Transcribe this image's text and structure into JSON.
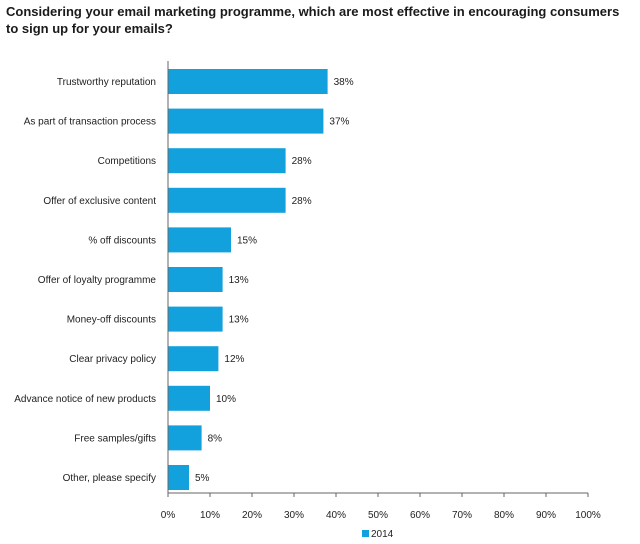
{
  "chart_data": {
    "type": "bar",
    "orientation": "horizontal",
    "title": "Considering your email marketing programme, which are most effective in encouraging consumers to sign up for your emails?",
    "categories": [
      "Trustworthy reputation",
      "As part of transaction process",
      "Competitions",
      "Offer of exclusive content",
      "% off discounts",
      "Offer of loyalty programme",
      "Money-off discounts",
      "Clear privacy policy",
      "Advance notice of new products",
      "Free samples/gifts",
      "Other, please specify"
    ],
    "series": [
      {
        "name": "2014",
        "values": [
          38,
          37,
          28,
          28,
          15,
          13,
          13,
          12,
          10,
          8,
          5
        ],
        "color": "#12a1dc"
      }
    ],
    "value_suffix": "%",
    "xlim": [
      0,
      100
    ],
    "xticks": [
      0,
      10,
      20,
      30,
      40,
      50,
      60,
      70,
      80,
      90,
      100
    ],
    "xtick_labels": [
      "0%",
      "10%",
      "20%",
      "30%",
      "40%",
      "50%",
      "60%",
      "70%",
      "80%",
      "90%",
      "100%"
    ],
    "data_labels": [
      "38%",
      "37%",
      "28%",
      "28%",
      "15%",
      "13%",
      "13%",
      "12%",
      "10%",
      "8%",
      "5%"
    ],
    "grid": false,
    "legend": {
      "position": "bottom",
      "entries": [
        "2014"
      ]
    }
  }
}
